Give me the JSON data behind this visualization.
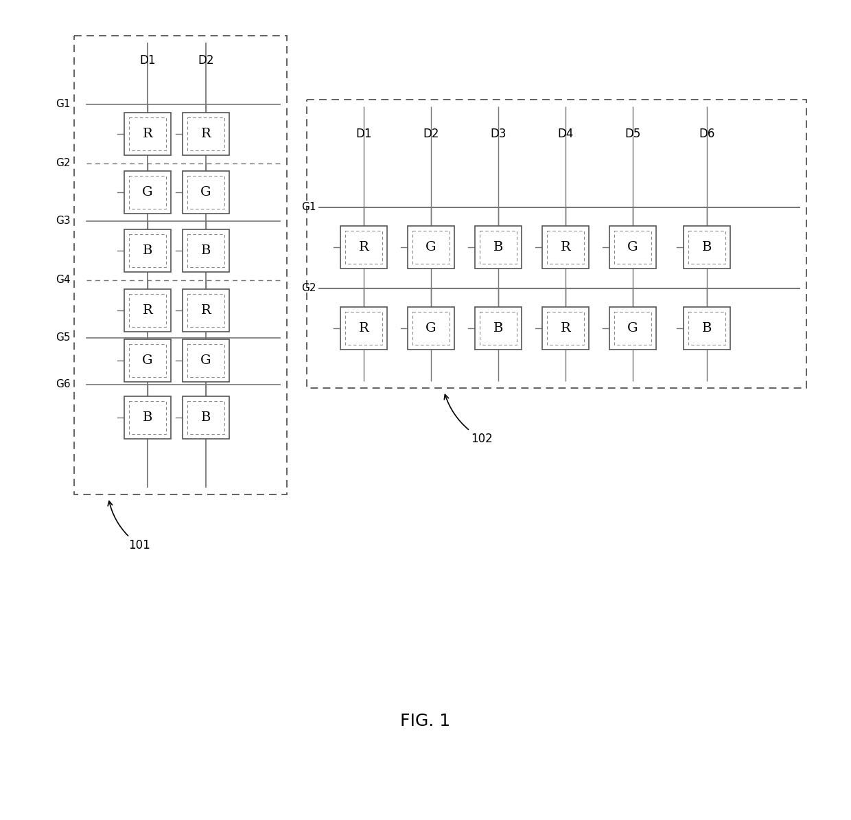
{
  "fig_width": 12.4,
  "fig_height": 11.94,
  "bg_color": "#ffffff",
  "line_color": "#777777",
  "text_color": "#000000",
  "fig_label": "FIG. 1",
  "panel1": {
    "label": "101",
    "d_labels": [
      "D1",
      "D2"
    ],
    "g_labels": [
      "G1",
      "G2",
      "G3",
      "G4",
      "G5",
      "G6"
    ],
    "cell_texts": [
      "R",
      "G",
      "B",
      "R",
      "G",
      "B"
    ],
    "g_dashed": [
      false,
      true,
      false,
      true,
      false,
      false
    ]
  },
  "panel2": {
    "label": "102",
    "d_labels": [
      "D1",
      "D2",
      "D3",
      "D4",
      "D5",
      "D6"
    ],
    "g_labels": [
      "G1",
      "G2"
    ],
    "cell_texts": [
      "R",
      "G",
      "B",
      "R",
      "G",
      "B"
    ]
  }
}
